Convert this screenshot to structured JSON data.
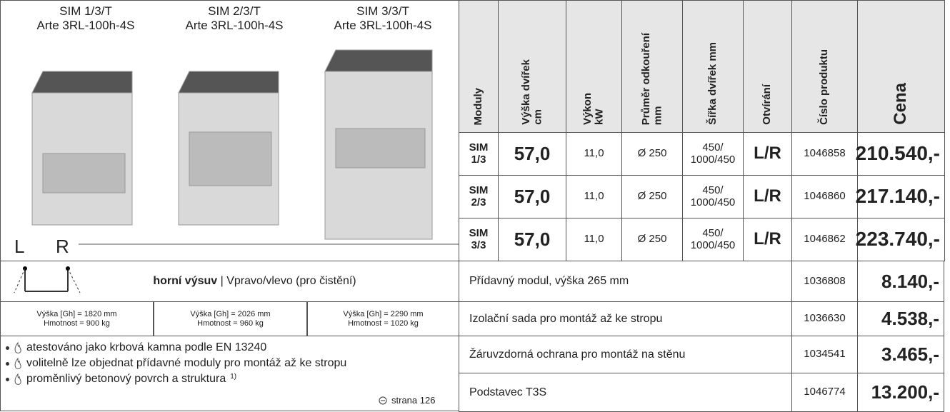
{
  "products": [
    {
      "name": "SIM 1/3/T",
      "model": "Arte 3RL-100h-4S"
    },
    {
      "name": "SIM 2/3/T",
      "model": "Arte 3RL-100h-4S"
    },
    {
      "name": "SIM 3/3/T",
      "model": "Arte 3RL-100h-4S"
    }
  ],
  "side_labels": [
    "L",
    "R"
  ],
  "feature": {
    "bold": "horní výsuv",
    "text": "| Vpravo/vlevo (pro čistění)"
  },
  "specs": [
    {
      "height": "Výška [Gh] = 1820 mm",
      "weight": "Hmotnost = 900 kg"
    },
    {
      "height": "Výška [Gh] = 2026 mm",
      "weight": "Hmotnost = 960 kg"
    },
    {
      "height": "Výška [Gh] = 2290 mm",
      "weight": "Hmotnost = 1020 kg"
    }
  ],
  "bullets": [
    {
      "text": "atestováno jako krbová kamna podle EN 13240"
    },
    {
      "text": "volitelně lze objednat přídavné moduly pro montáž až ke stropu"
    },
    {
      "text": "proměnlivý betonový povrch a struktura",
      "note": "1)"
    }
  ],
  "page_ref": "strana 126",
  "table": {
    "columns": [
      [
        "Moduly"
      ],
      [
        "Výška dvířek",
        "cm"
      ],
      [
        "Výkon",
        "kW"
      ],
      [
        "Průměr odkouření",
        "mm"
      ],
      [
        "Šířka dvířek mm"
      ],
      [
        "Otvírání"
      ],
      [
        "Číslo produktu"
      ],
      [
        "Cena"
      ]
    ],
    "rows": [
      [
        "SIM\n1/3",
        "57,0",
        "11,0",
        "Ø 250",
        "450/\n1000/450",
        "L/R",
        "1046858",
        "210.540,-"
      ],
      [
        "SIM\n2/3",
        "57,0",
        "11,0",
        "Ø 250",
        "450/\n1000/450",
        "L/R",
        "1046860",
        "217.140,-"
      ],
      [
        "SIM\n3/3",
        "57,0",
        "11,0",
        "Ø 250",
        "450/\n1000/450",
        "L/R",
        "1046862",
        "223.740,-"
      ]
    ],
    "accessories": [
      [
        "Přídavný modul, výška 265 mm",
        "1036808",
        "8.140,-"
      ],
      [
        "Izolační sada pro montáž až ke stropu",
        "1036630",
        "4.538,-"
      ],
      [
        "Žáruvzdorná ochrana pro montáž na stěnu",
        "1034541",
        "3.465,-"
      ],
      [
        "Podstavec T3S",
        "1046774",
        "13.200,-"
      ]
    ]
  }
}
